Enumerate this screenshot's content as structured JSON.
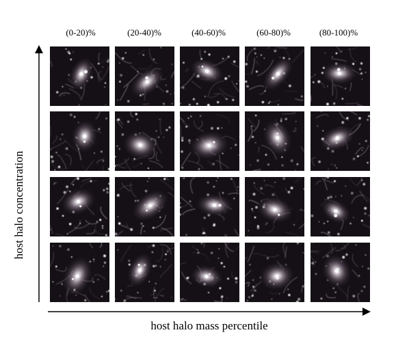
{
  "columns": [
    "(0-20)%",
    "(20-40)%",
    "(40-60)%",
    "(60-80)%",
    "(80-100)%"
  ],
  "rows": 4,
  "x_axis_label": "host halo mass percentile",
  "y_axis_label": "host halo concentration",
  "tile_colors": {
    "background": "#151016",
    "filament": "#a89aa8",
    "core": "#ffffff"
  }
}
